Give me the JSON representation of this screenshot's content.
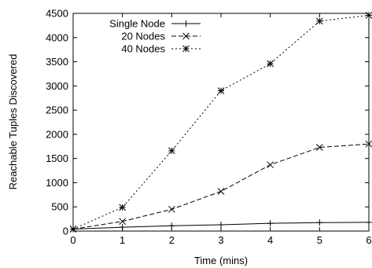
{
  "chart_data": {
    "type": "line",
    "xlabel": "Time (mins)",
    "ylabel": "Reachable Tuples Discovered",
    "xlim": [
      0,
      6
    ],
    "ylim": [
      0,
      4500
    ],
    "xticks": [
      "0",
      "1",
      "2",
      "3",
      "4",
      "5",
      "6"
    ],
    "yticks": [
      "0",
      "500",
      "1000",
      "1500",
      "2000",
      "2500",
      "3000",
      "3500",
      "4000",
      "4500"
    ],
    "grid": false,
    "legend_position": "top-left",
    "series": [
      {
        "name": "Single Node",
        "marker": "plus",
        "line_style": "solid",
        "x": [
          0,
          1,
          2,
          3,
          4,
          5,
          6
        ],
        "y": [
          40,
          80,
          110,
          130,
          160,
          175,
          180
        ]
      },
      {
        "name": "20 Nodes",
        "marker": "x",
        "line_style": "dashed",
        "x": [
          0,
          1,
          2,
          3,
          4,
          5,
          6
        ],
        "y": [
          40,
          200,
          450,
          820,
          1370,
          1730,
          1800
        ]
      },
      {
        "name": "40 Nodes",
        "marker": "star",
        "line_style": "dotted",
        "x": [
          0,
          1,
          2,
          3,
          4,
          5,
          6
        ],
        "y": [
          40,
          490,
          1660,
          2900,
          3460,
          4340,
          4460
        ]
      }
    ]
  }
}
